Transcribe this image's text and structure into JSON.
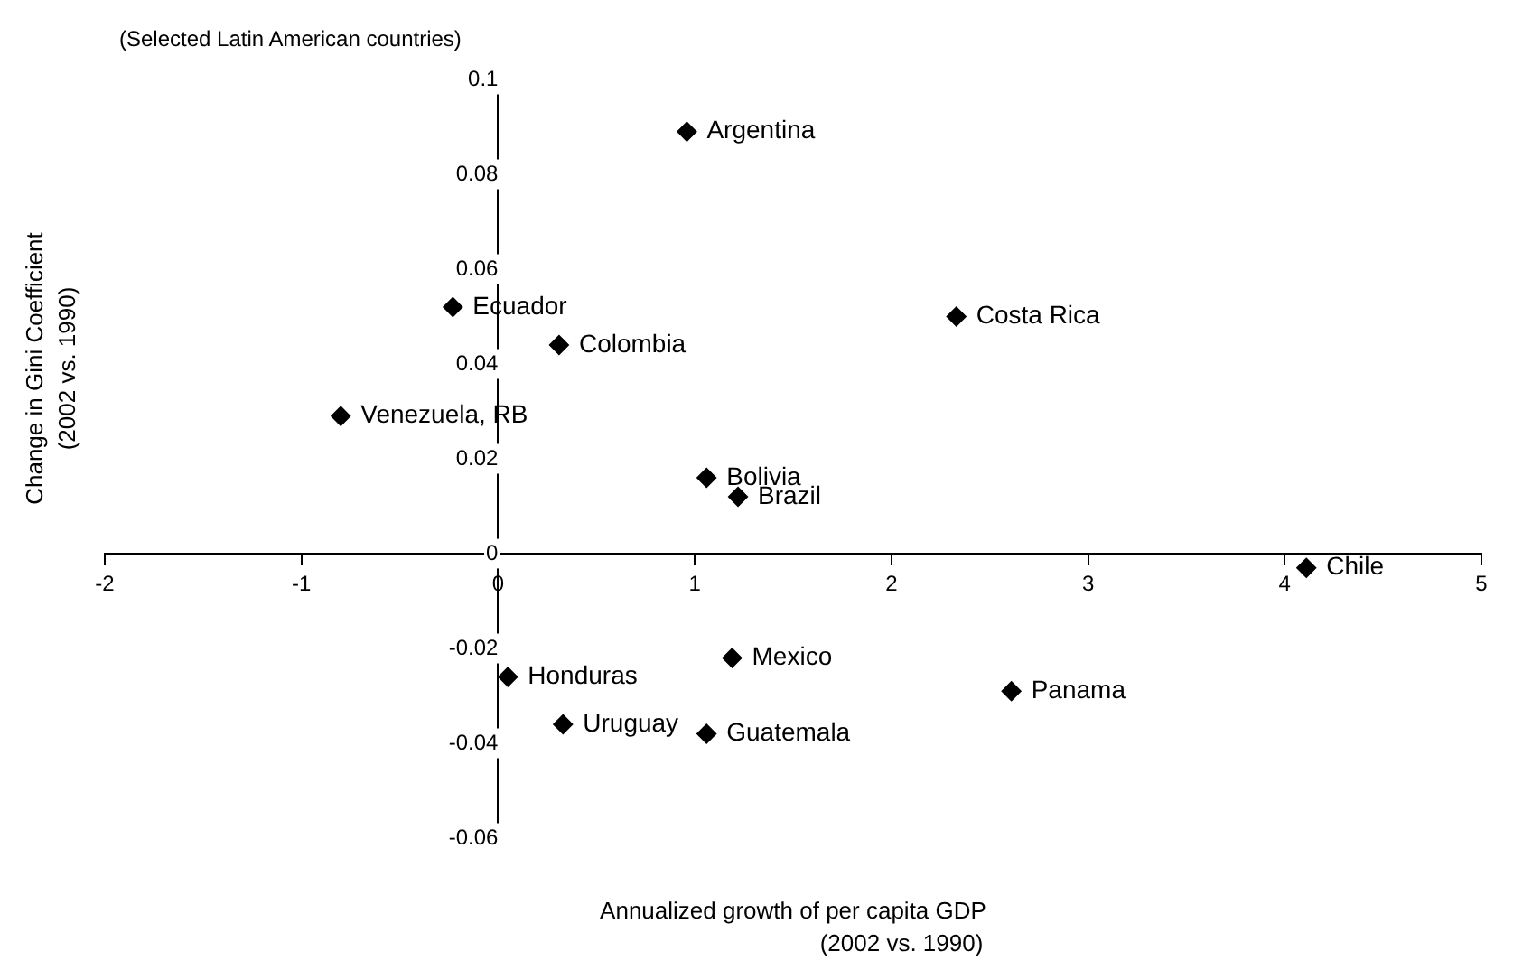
{
  "chart_data": {
    "type": "scatter",
    "title": "(Selected Latin American countries)",
    "xlabel": "Annualized growth of per capita GDP\n(2002 vs. 1990)",
    "ylabel": "Change in Gini Coefficient\n(2002 vs. 1990)",
    "x": [
      0.96,
      -0.23,
      0.31,
      2.33,
      -0.8,
      1.06,
      1.22,
      4.11,
      0.05,
      1.19,
      2.61,
      0.33,
      1.06
    ],
    "series": [
      {
        "color": "#000000",
        "values": [
          0.089,
          0.052,
          0.044,
          0.05,
          0.029,
          0.016,
          0.012,
          -0.003,
          -0.026,
          -0.022,
          -0.029,
          -0.036,
          -0.038
        ]
      }
    ],
    "annotations": [
      {
        "text": "Argentina",
        "x": 0.96,
        "y": 0.089
      },
      {
        "text": "Ecuador",
        "x": -0.23,
        "y": 0.052
      },
      {
        "text": "Colombia",
        "x": 0.31,
        "y": 0.044
      },
      {
        "text": "Costa Rica",
        "x": 2.33,
        "y": 0.05
      },
      {
        "text": "Venezuela, RB",
        "x": -0.8,
        "y": 0.029
      },
      {
        "text": "Bolivia",
        "x": 1.06,
        "y": 0.016
      },
      {
        "text": "Brazil",
        "x": 1.22,
        "y": 0.012
      },
      {
        "text": "Chile",
        "x": 4.11,
        "y": -0.003
      },
      {
        "text": "Honduras",
        "x": 0.05,
        "y": -0.026
      },
      {
        "text": "Mexico",
        "x": 1.19,
        "y": -0.022
      },
      {
        "text": "Panama",
        "x": 2.61,
        "y": -0.029
      },
      {
        "text": "Uruguay",
        "x": 0.33,
        "y": -0.036
      },
      {
        "text": "Guatemala",
        "x": 1.06,
        "y": -0.038
      }
    ],
    "xlim": [
      -2,
      5
    ],
    "xticks": [
      -2,
      -1,
      0,
      1,
      2,
      3,
      4,
      5
    ],
    "ylim": [
      -0.06,
      0.1
    ],
    "yticks": [
      -0.06,
      -0.04,
      -0.02,
      0,
      0.02,
      0.04,
      0.06,
      0.08,
      0.1
    ],
    "marker": "diamond",
    "grid": false,
    "legend": false
  }
}
